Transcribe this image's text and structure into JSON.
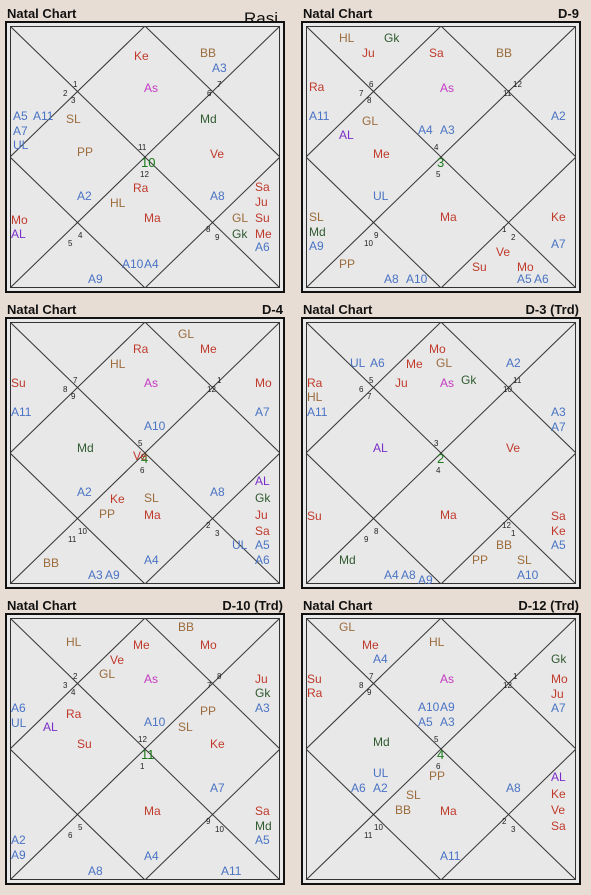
{
  "colors": {
    "background": "#e8ddd4",
    "chart_fill": "#e8e8e8",
    "planet_red": "#c0392b",
    "asc_magenta": "#c33ac3",
    "arudha_blue": "#4a73c4",
    "special_brown": "#9b6b3c",
    "mandi_green": "#2f5a2f",
    "al_purple": "#7a2ec9",
    "lagna_number": "#1a7a1a"
  },
  "charts": [
    {
      "title": "Natal Chart",
      "division": "",
      "subtitle": "Rasi",
      "houses": [
        "10",
        "11",
        "12",
        "1",
        "2",
        "3",
        "4",
        "5",
        "6",
        "7",
        "8",
        "9"
      ],
      "items": [
        {
          "t": "Ke",
          "c": "r"
        },
        {
          "t": "As",
          "c": "m"
        },
        {
          "t": "BB",
          "c": "b"
        },
        {
          "t": "A3",
          "c": "u"
        },
        {
          "t": "A5",
          "c": "u"
        },
        {
          "t": "A11",
          "c": "u"
        },
        {
          "t": "A7",
          "c": "u"
        },
        {
          "t": "UL",
          "c": "u"
        },
        {
          "t": "SL",
          "c": "b"
        },
        {
          "t": "PP",
          "c": "b"
        },
        {
          "t": "Md",
          "c": "g"
        },
        {
          "t": "Ve",
          "c": "r"
        },
        {
          "t": "Ra",
          "c": "r"
        },
        {
          "t": "HL",
          "c": "b"
        },
        {
          "t": "A2",
          "c": "u"
        },
        {
          "t": "Ma",
          "c": "r"
        },
        {
          "t": "A8",
          "c": "u"
        },
        {
          "t": "Sa",
          "c": "r"
        },
        {
          "t": "Ju",
          "c": "r"
        },
        {
          "t": "Su",
          "c": "r"
        },
        {
          "t": "Me",
          "c": "r"
        },
        {
          "t": "GL",
          "c": "b"
        },
        {
          "t": "Gk",
          "c": "g"
        },
        {
          "t": "A6",
          "c": "u"
        },
        {
          "t": "Mo",
          "c": "r"
        },
        {
          "t": "AL",
          "c": "p"
        },
        {
          "t": "A10",
          "c": "u"
        },
        {
          "t": "A4",
          "c": "u"
        },
        {
          "t": "A9",
          "c": "u"
        }
      ]
    },
    {
      "title": "Natal Chart",
      "division": "D-9",
      "subtitle": "",
      "houses": [
        "3",
        "4",
        "5",
        "6",
        "7",
        "8",
        "9",
        "10",
        "11",
        "12",
        "1",
        "2"
      ],
      "items": [
        {
          "t": "HL",
          "c": "b"
        },
        {
          "t": "Gk",
          "c": "g"
        },
        {
          "t": "Ju",
          "c": "r"
        },
        {
          "t": "Sa",
          "c": "r"
        },
        {
          "t": "As",
          "c": "m"
        },
        {
          "t": "BB",
          "c": "b"
        },
        {
          "t": "Ra",
          "c": "r"
        },
        {
          "t": "A11",
          "c": "u"
        },
        {
          "t": "GL",
          "c": "b"
        },
        {
          "t": "AL",
          "c": "p"
        },
        {
          "t": "Me",
          "c": "r"
        },
        {
          "t": "A4",
          "c": "u"
        },
        {
          "t": "A3",
          "c": "u"
        },
        {
          "t": "A2",
          "c": "u"
        },
        {
          "t": "UL",
          "c": "u"
        },
        {
          "t": "SL",
          "c": "b"
        },
        {
          "t": "Md",
          "c": "g"
        },
        {
          "t": "A9",
          "c": "u"
        },
        {
          "t": "Ma",
          "c": "r"
        },
        {
          "t": "Ke",
          "c": "r"
        },
        {
          "t": "A7",
          "c": "u"
        },
        {
          "t": "Ve",
          "c": "r"
        },
        {
          "t": "Su",
          "c": "r"
        },
        {
          "t": "Mo",
          "c": "r"
        },
        {
          "t": "PP",
          "c": "b"
        },
        {
          "t": "A8",
          "c": "u"
        },
        {
          "t": "A10",
          "c": "u"
        },
        {
          "t": "A5",
          "c": "u"
        },
        {
          "t": "A6",
          "c": "u"
        }
      ]
    },
    {
      "title": "Natal Chart",
      "division": "D-4",
      "subtitle": "",
      "houses": [
        "4",
        "5",
        "6",
        "7",
        "8",
        "9",
        "10",
        "11",
        "12",
        "1",
        "2",
        "3"
      ],
      "items": [
        {
          "t": "GL",
          "c": "b"
        },
        {
          "t": "Ra",
          "c": "r"
        },
        {
          "t": "Me",
          "c": "r"
        },
        {
          "t": "HL",
          "c": "b"
        },
        {
          "t": "As",
          "c": "m"
        },
        {
          "t": "Su",
          "c": "r"
        },
        {
          "t": "Mo",
          "c": "r"
        },
        {
          "t": "A11",
          "c": "u"
        },
        {
          "t": "A7",
          "c": "u"
        },
        {
          "t": "A10",
          "c": "u"
        },
        {
          "t": "Md",
          "c": "g"
        },
        {
          "t": "Ve",
          "c": "r"
        },
        {
          "t": "Ke",
          "c": "r"
        },
        {
          "t": "SL",
          "c": "b"
        },
        {
          "t": "A2",
          "c": "u"
        },
        {
          "t": "PP",
          "c": "b"
        },
        {
          "t": "Ma",
          "c": "r"
        },
        {
          "t": "A8",
          "c": "u"
        },
        {
          "t": "AL",
          "c": "p"
        },
        {
          "t": "Gk",
          "c": "g"
        },
        {
          "t": "Ju",
          "c": "r"
        },
        {
          "t": "Sa",
          "c": "r"
        },
        {
          "t": "UL",
          "c": "u"
        },
        {
          "t": "A5",
          "c": "u"
        },
        {
          "t": "A6",
          "c": "u"
        },
        {
          "t": "A4",
          "c": "u"
        },
        {
          "t": "BB",
          "c": "b"
        },
        {
          "t": "A3",
          "c": "u"
        },
        {
          "t": "A9",
          "c": "u"
        }
      ]
    },
    {
      "title": "Natal Chart",
      "division": "D-3 (Trd)",
      "subtitle": "",
      "houses": [
        "2",
        "3",
        "4",
        "5",
        "6",
        "7",
        "8",
        "9",
        "10",
        "11",
        "12",
        "1"
      ],
      "items": [
        {
          "t": "Mo",
          "c": "r"
        },
        {
          "t": "UL",
          "c": "u"
        },
        {
          "t": "A6",
          "c": "u"
        },
        {
          "t": "Me",
          "c": "r"
        },
        {
          "t": "GL",
          "c": "b"
        },
        {
          "t": "A2",
          "c": "u"
        },
        {
          "t": "Ju",
          "c": "r"
        },
        {
          "t": "As",
          "c": "m"
        },
        {
          "t": "Gk",
          "c": "g"
        },
        {
          "t": "Ra",
          "c": "r"
        },
        {
          "t": "HL",
          "c": "b"
        },
        {
          "t": "A11",
          "c": "u"
        },
        {
          "t": "A3",
          "c": "u"
        },
        {
          "t": "A7",
          "c": "u"
        },
        {
          "t": "AL",
          "c": "p"
        },
        {
          "t": "Ve",
          "c": "r"
        },
        {
          "t": "Su",
          "c": "r"
        },
        {
          "t": "Ma",
          "c": "r"
        },
        {
          "t": "Sa",
          "c": "r"
        },
        {
          "t": "Ke",
          "c": "r"
        },
        {
          "t": "A5",
          "c": "u"
        },
        {
          "t": "BB",
          "c": "b"
        },
        {
          "t": "PP",
          "c": "b"
        },
        {
          "t": "SL",
          "c": "b"
        },
        {
          "t": "A10",
          "c": "u"
        },
        {
          "t": "Md",
          "c": "g"
        },
        {
          "t": "A4",
          "c": "u"
        },
        {
          "t": "A8",
          "c": "u"
        },
        {
          "t": "A9",
          "c": "u"
        }
      ]
    },
    {
      "title": "Natal Chart",
      "division": "D-10 (Trd)",
      "subtitle": "",
      "houses": [
        "11",
        "12",
        "1",
        "2",
        "3",
        "4",
        "5",
        "6",
        "7",
        "8",
        "9",
        "10"
      ],
      "items": [
        {
          "t": "BB",
          "c": "b"
        },
        {
          "t": "HL",
          "c": "b"
        },
        {
          "t": "Me",
          "c": "r"
        },
        {
          "t": "Mo",
          "c": "r"
        },
        {
          "t": "Ve",
          "c": "r"
        },
        {
          "t": "GL",
          "c": "b"
        },
        {
          "t": "As",
          "c": "m"
        },
        {
          "t": "Ju",
          "c": "r"
        },
        {
          "t": "Gk",
          "c": "g"
        },
        {
          "t": "A3",
          "c": "u"
        },
        {
          "t": "A6",
          "c": "u"
        },
        {
          "t": "Ra",
          "c": "r"
        },
        {
          "t": "UL",
          "c": "u"
        },
        {
          "t": "AL",
          "c": "p"
        },
        {
          "t": "PP",
          "c": "b"
        },
        {
          "t": "A10",
          "c": "u"
        },
        {
          "t": "SL",
          "c": "b"
        },
        {
          "t": "Su",
          "c": "r"
        },
        {
          "t": "Ke",
          "c": "r"
        },
        {
          "t": "A7",
          "c": "u"
        },
        {
          "t": "Ma",
          "c": "r"
        },
        {
          "t": "Sa",
          "c": "r"
        },
        {
          "t": "Md",
          "c": "g"
        },
        {
          "t": "A5",
          "c": "u"
        },
        {
          "t": "A2",
          "c": "u"
        },
        {
          "t": "A9",
          "c": "u"
        },
        {
          "t": "A4",
          "c": "u"
        },
        {
          "t": "A8",
          "c": "u"
        },
        {
          "t": "A11",
          "c": "u"
        }
      ]
    },
    {
      "title": "Natal Chart",
      "division": "D-12 (Trd)",
      "subtitle": "",
      "houses": [
        "4",
        "5",
        "6",
        "7",
        "8",
        "9",
        "10",
        "11",
        "12",
        "1",
        "2",
        "3"
      ],
      "items": [
        {
          "t": "GL",
          "c": "b"
        },
        {
          "t": "Me",
          "c": "r"
        },
        {
          "t": "A4",
          "c": "u"
        },
        {
          "t": "HL",
          "c": "b"
        },
        {
          "t": "As",
          "c": "m"
        },
        {
          "t": "Gk",
          "c": "g"
        },
        {
          "t": "Su",
          "c": "r"
        },
        {
          "t": "Mo",
          "c": "r"
        },
        {
          "t": "Ra",
          "c": "r"
        },
        {
          "t": "Ju",
          "c": "r"
        },
        {
          "t": "A7",
          "c": "u"
        },
        {
          "t": "A10",
          "c": "u"
        },
        {
          "t": "A9",
          "c": "u"
        },
        {
          "t": "A5",
          "c": "u"
        },
        {
          "t": "A3",
          "c": "u"
        },
        {
          "t": "Md",
          "c": "g"
        },
        {
          "t": "UL",
          "c": "u"
        },
        {
          "t": "PP",
          "c": "b"
        },
        {
          "t": "A6",
          "c": "u"
        },
        {
          "t": "A2",
          "c": "u"
        },
        {
          "t": "SL",
          "c": "b"
        },
        {
          "t": "BB",
          "c": "b"
        },
        {
          "t": "Ma",
          "c": "r"
        },
        {
          "t": "A8",
          "c": "u"
        },
        {
          "t": "AL",
          "c": "p"
        },
        {
          "t": "Ke",
          "c": "r"
        },
        {
          "t": "Ve",
          "c": "r"
        },
        {
          "t": "Sa",
          "c": "r"
        },
        {
          "t": "A11",
          "c": "u"
        }
      ]
    }
  ]
}
